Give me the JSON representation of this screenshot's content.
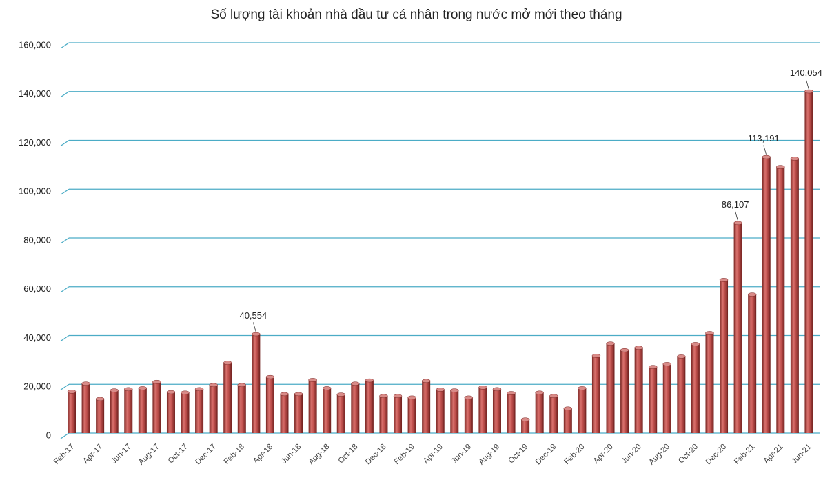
{
  "chart_data": {
    "type": "bar",
    "title": "Số lượng tài khoản nhà đầu tư cá nhân trong nước mở mới theo tháng",
    "categories": [
      "Feb-17",
      null,
      "Apr-17",
      null,
      "Jun-17",
      null,
      "Aug-17",
      null,
      "Oct-17",
      null,
      "Dec-17",
      null,
      "Feb-18",
      null,
      "Apr-18",
      null,
      "Jun-18",
      null,
      "Aug-18",
      null,
      "Oct-18",
      null,
      "Dec-18",
      null,
      "Feb-19",
      null,
      "Apr-19",
      null,
      "Jun-19",
      null,
      "Aug-19",
      null,
      "Oct-19",
      null,
      "Dec-19",
      null,
      "Feb-20",
      null,
      "Apr-20",
      null,
      "Jun-20",
      null,
      "Aug-20",
      null,
      "Oct-20",
      null,
      "Dec-20",
      null,
      "Feb-21",
      null,
      "Apr-21",
      null,
      "Jun-21"
    ],
    "values": [
      17000,
      20300,
      14000,
      17500,
      18000,
      18400,
      21000,
      16800,
      16600,
      18000,
      19700,
      28800,
      19700,
      40554,
      23000,
      16000,
      16000,
      21800,
      18400,
      15800,
      20300,
      21600,
      15200,
      15200,
      14600,
      21400,
      17800,
      17500,
      14600,
      18700,
      18000,
      16400,
      5600,
      16600,
      15200,
      10100,
      18400,
      31700,
      36700,
      34000,
      35000,
      27100,
      28300,
      31400,
      36500,
      41000,
      62800,
      86107,
      56800,
      113191,
      109100,
      112500,
      140054
    ],
    "value_labels": [
      null,
      null,
      null,
      null,
      null,
      null,
      null,
      null,
      null,
      null,
      null,
      null,
      null,
      "40,554",
      null,
      null,
      null,
      null,
      null,
      null,
      null,
      null,
      null,
      null,
      null,
      null,
      null,
      null,
      null,
      null,
      null,
      null,
      null,
      null,
      null,
      null,
      null,
      null,
      null,
      null,
      null,
      null,
      null,
      null,
      null,
      null,
      null,
      "86,107",
      null,
      "113,191",
      null,
      null,
      "140,054"
    ],
    "color": "#c0504d",
    "ylim": [
      0,
      160000
    ],
    "yticks": [
      0,
      {
        "value": 20000,
        "label": "20,000"
      },
      {
        "value": 40000,
        "label": "40,000"
      },
      {
        "value": 60000,
        "label": "60,000"
      },
      {
        "value": 80000,
        "label": "80,000"
      },
      {
        "value": 100000,
        "label": "100,000"
      },
      {
        "value": 120000,
        "label": "120,000"
      },
      {
        "value": 140000,
        "label": "140,000"
      },
      {
        "value": 160000,
        "label": "160,000"
      }
    ],
    "grid": true
  }
}
